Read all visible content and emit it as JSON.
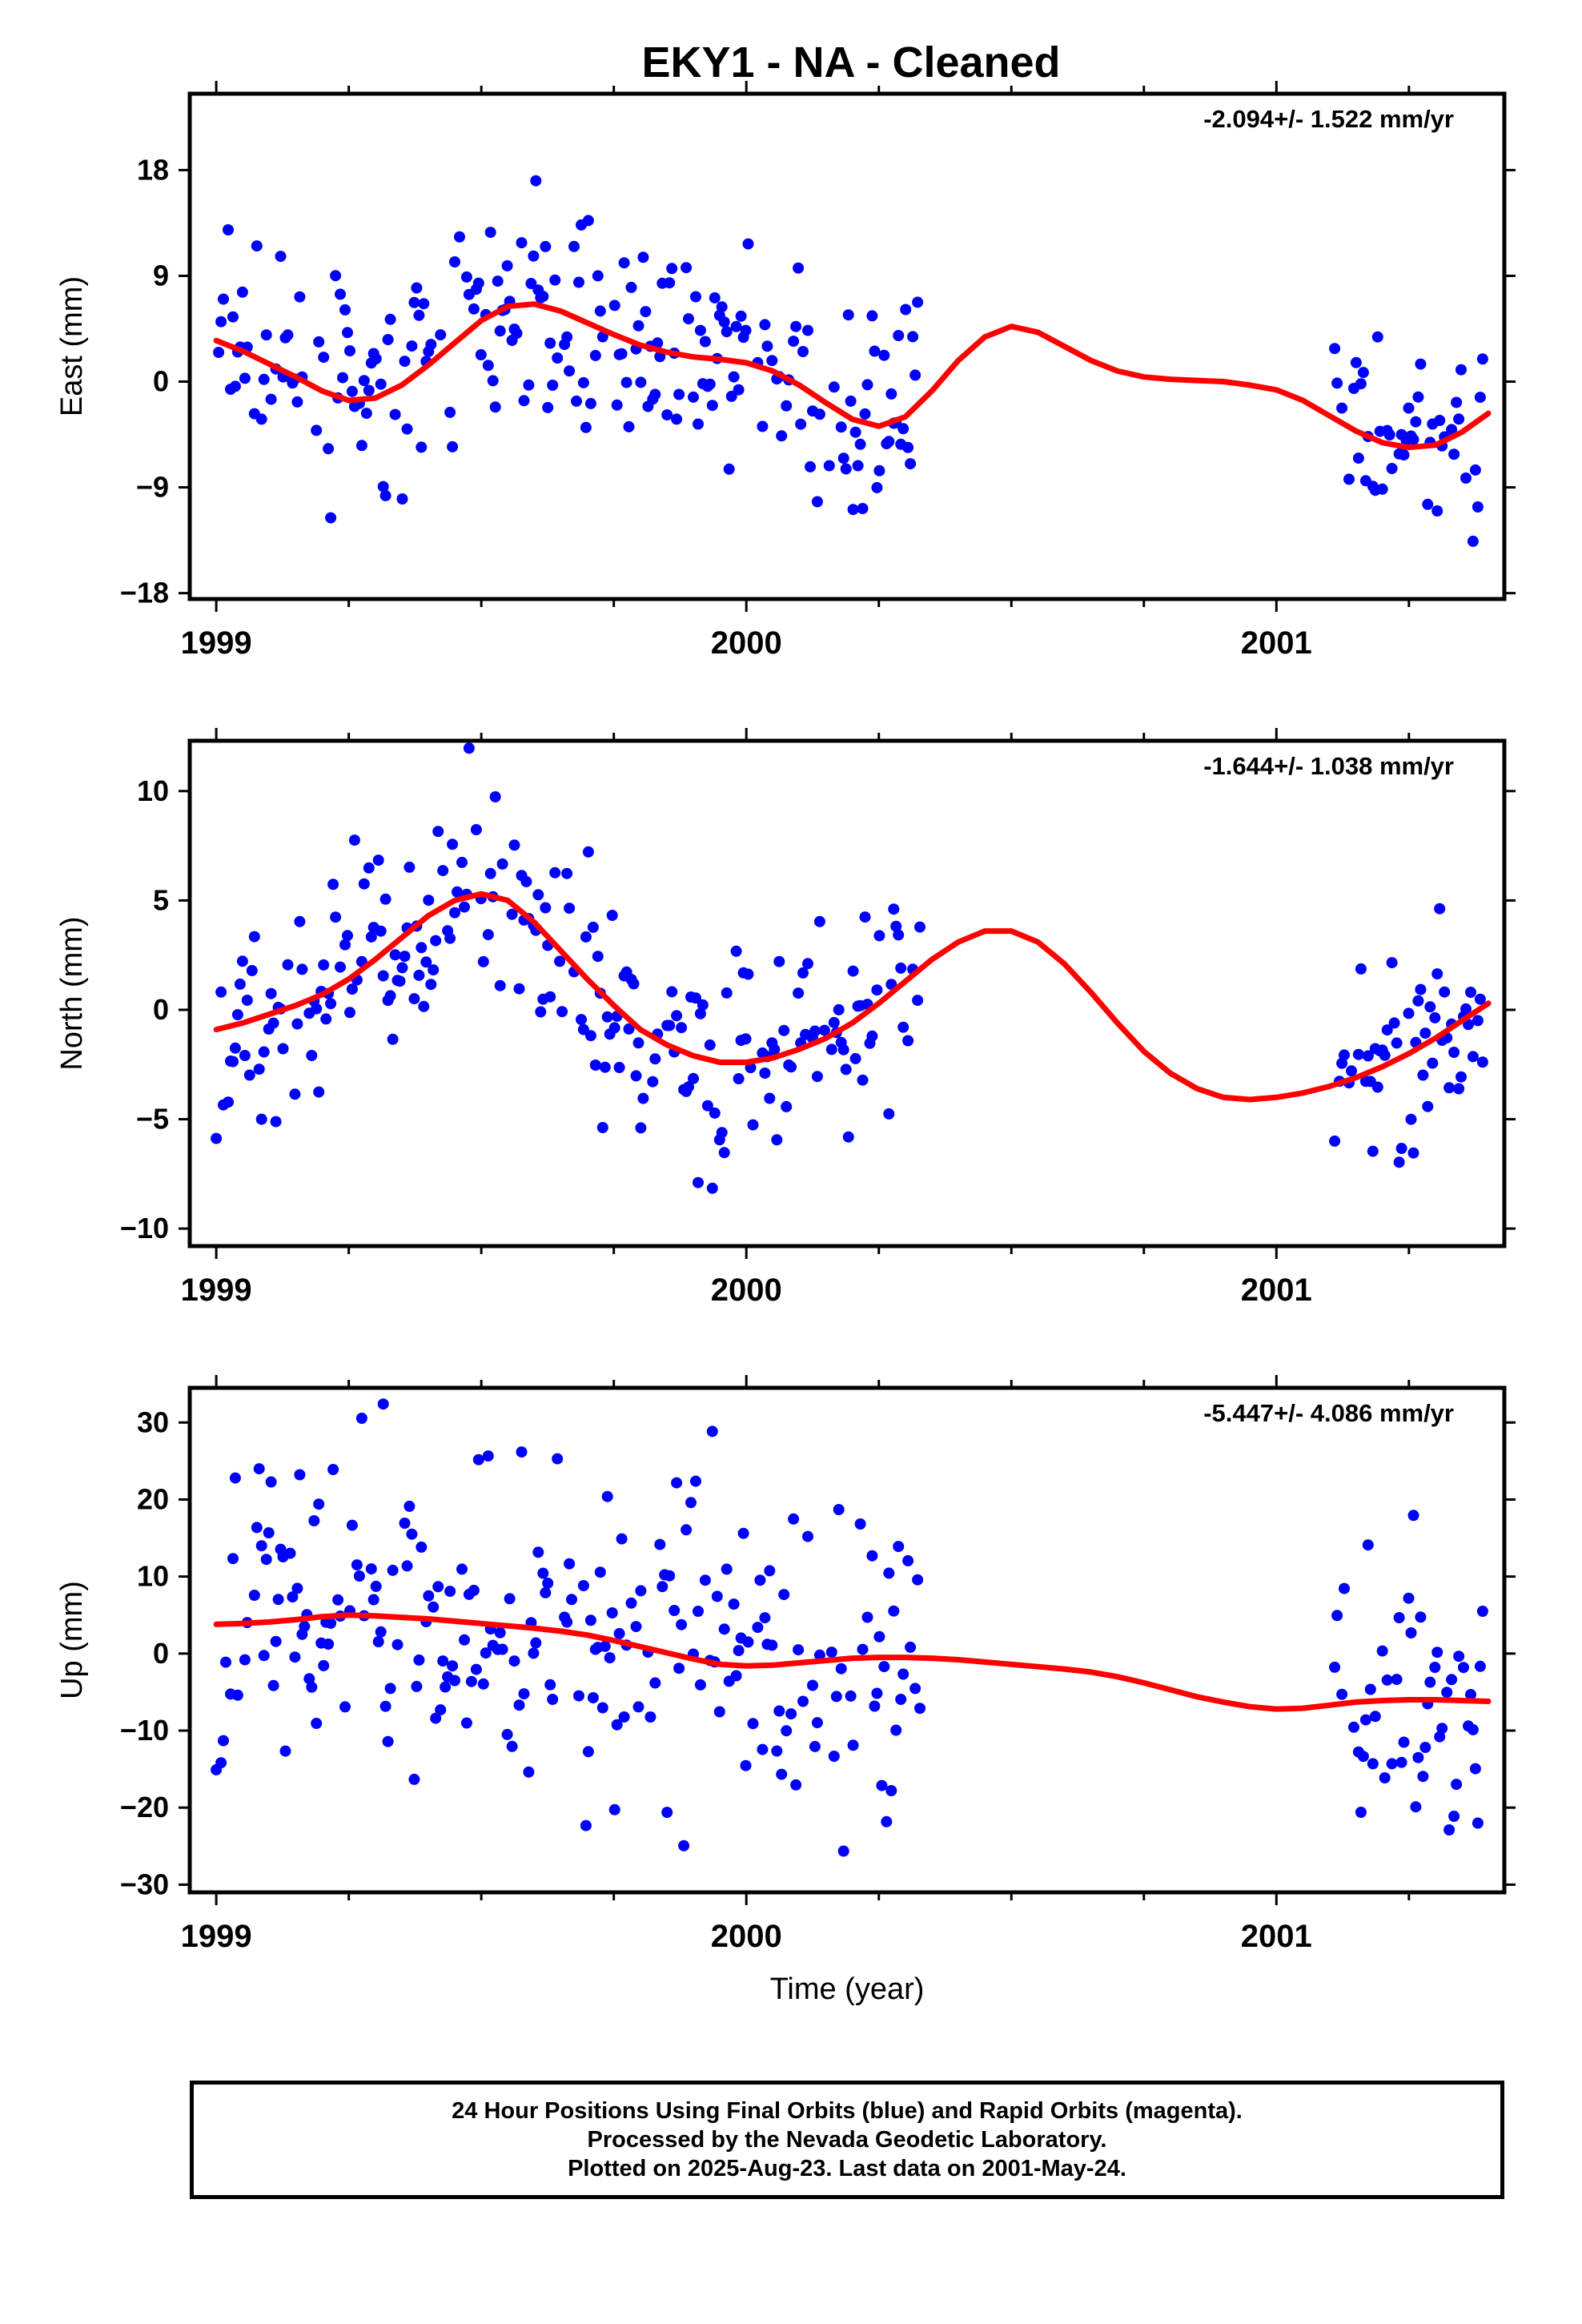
{
  "title": "EKY1  - NA - Cleaned",
  "chart_data": [
    {
      "type": "scatter",
      "ylabel": "East (mm)",
      "yticks": [
        18,
        9,
        0,
        -9,
        -18
      ],
      "ylim": [
        -18.5,
        24.5
      ],
      "xlim": [
        1998.95,
        2001.43
      ],
      "xticks": [
        1999,
        2000,
        2001
      ],
      "rate": "-2.094+/- 1.522 mm/yr",
      "series": [
        {
          "name": "Final Orbits",
          "color": "#0000ff",
          "style": "points"
        },
        {
          "name": "Model",
          "color": "#ff0000",
          "style": "line",
          "x": [
            1999.0,
            1999.05,
            1999.1,
            1999.15,
            1999.2,
            1999.25,
            1999.3,
            1999.35,
            1999.4,
            1999.45,
            1999.5,
            1999.55,
            1999.6,
            1999.65,
            1999.7,
            1999.75,
            1999.8,
            1999.85,
            1999.9,
            1999.95,
            2000.0,
            2000.05,
            2000.1,
            2000.15,
            2000.2,
            2000.25,
            2000.3,
            2000.35,
            2000.4,
            2000.45,
            2000.5,
            2000.55,
            2000.6,
            2000.65,
            2000.7,
            2000.75,
            2000.8,
            2000.85,
            2000.9,
            2000.95,
            2001.0,
            2001.05,
            2001.1,
            2001.15,
            2001.2,
            2001.25,
            2001.3,
            2001.35,
            2001.4
          ],
          "y": [
            3.5,
            2.6,
            1.5,
            0.4,
            -0.8,
            -1.6,
            -1.4,
            -0.3,
            1.4,
            3.3,
            5.2,
            6.4,
            6.6,
            6.0,
            5.0,
            4.0,
            3.1,
            2.5,
            2.1,
            1.9,
            1.6,
            0.9,
            -0.3,
            -1.8,
            -3.2,
            -3.8,
            -3.0,
            -0.8,
            1.8,
            3.8,
            4.7,
            4.2,
            3.0,
            1.8,
            0.9,
            0.4,
            0.2,
            0.1,
            0.0,
            -0.3,
            -0.7,
            -1.6,
            -2.9,
            -4.2,
            -5.2,
            -5.6,
            -5.4,
            -4.3,
            -2.7
          ]
        }
      ]
    },
    {
      "type": "scatter",
      "ylabel": "North (mm)",
      "yticks": [
        10,
        5,
        0,
        -5,
        -10
      ],
      "ylim": [
        -10.8,
        12.3
      ],
      "xlim": [
        1998.95,
        2001.43
      ],
      "xticks": [
        1999,
        2000,
        2001
      ],
      "rate": "-1.644+/- 1.038 mm/yr",
      "series": [
        {
          "name": "Final Orbits",
          "color": "#0000ff",
          "style": "points"
        },
        {
          "name": "Model",
          "color": "#ff0000",
          "style": "line",
          "x": [
            1999.0,
            1999.05,
            1999.1,
            1999.15,
            1999.2,
            1999.25,
            1999.3,
            1999.35,
            1999.4,
            1999.45,
            1999.5,
            1999.55,
            1999.6,
            1999.65,
            1999.7,
            1999.75,
            1999.8,
            1999.85,
            1999.9,
            1999.95,
            2000.0,
            2000.05,
            2000.1,
            2000.15,
            2000.2,
            2000.25,
            2000.3,
            2000.35,
            2000.4,
            2000.45,
            2000.5,
            2000.55,
            2000.6,
            2000.65,
            2000.7,
            2000.75,
            2000.8,
            2000.85,
            2000.9,
            2000.95,
            2001.0,
            2001.05,
            2001.1,
            2001.15,
            2001.2,
            2001.25,
            2001.3,
            2001.35,
            2001.4
          ],
          "y": [
            -0.9,
            -0.6,
            -0.2,
            0.2,
            0.7,
            1.4,
            2.3,
            3.3,
            4.3,
            5.0,
            5.3,
            5.0,
            4.0,
            2.7,
            1.4,
            0.2,
            -0.9,
            -1.6,
            -2.1,
            -2.4,
            -2.4,
            -2.2,
            -1.8,
            -1.3,
            -0.6,
            0.3,
            1.3,
            2.3,
            3.1,
            3.6,
            3.6,
            3.1,
            2.1,
            0.8,
            -0.6,
            -1.9,
            -2.9,
            -3.6,
            -4.0,
            -4.1,
            -4.0,
            -3.8,
            -3.5,
            -3.1,
            -2.6,
            -2.0,
            -1.3,
            -0.5,
            0.3
          ]
        }
      ]
    },
    {
      "type": "scatter",
      "ylabel": "Up (mm)",
      "yticks": [
        30,
        20,
        10,
        0,
        -10,
        -20,
        -30
      ],
      "ylim": [
        -31,
        34.5
      ],
      "xlim": [
        1998.95,
        2001.43
      ],
      "xticks": [
        1999,
        2000,
        2001
      ],
      "xlabel": "Time (year)",
      "rate": "-5.447+/- 4.086 mm/yr",
      "series": [
        {
          "name": "Final Orbits",
          "color": "#0000ff",
          "style": "points"
        },
        {
          "name": "Model",
          "color": "#ff0000",
          "style": "line",
          "x": [
            1999.0,
            1999.05,
            1999.1,
            1999.15,
            1999.2,
            1999.25,
            1999.3,
            1999.35,
            1999.4,
            1999.45,
            1999.5,
            1999.55,
            1999.6,
            1999.65,
            1999.7,
            1999.75,
            1999.8,
            1999.85,
            1999.9,
            1999.95,
            2000.0,
            2000.05,
            2000.1,
            2000.15,
            2000.2,
            2000.25,
            2000.3,
            2000.35,
            2000.4,
            2000.45,
            2000.5,
            2000.55,
            2000.6,
            2000.65,
            2000.7,
            2000.75,
            2000.8,
            2000.85,
            2000.9,
            2000.95,
            2001.0,
            2001.05,
            2001.1,
            2001.15,
            2001.2,
            2001.25,
            2001.3,
            2001.35,
            2001.4
          ],
          "y": [
            3.8,
            3.9,
            4.1,
            4.4,
            4.8,
            5.0,
            4.9,
            4.7,
            4.5,
            4.2,
            3.9,
            3.6,
            3.3,
            2.9,
            2.4,
            1.7,
            0.9,
            0.1,
            -0.7,
            -1.4,
            -1.6,
            -1.5,
            -1.2,
            -0.9,
            -0.6,
            -0.5,
            -0.5,
            -0.6,
            -0.8,
            -1.1,
            -1.4,
            -1.7,
            -2.0,
            -2.4,
            -3.0,
            -3.8,
            -4.7,
            -5.6,
            -6.3,
            -6.9,
            -7.2,
            -7.1,
            -6.7,
            -6.3,
            -6.1,
            -6.0,
            -6.0,
            -6.1,
            -6.2
          ]
        }
      ]
    }
  ],
  "footer": {
    "line1": "24 Hour Positions Using Final Orbits (blue) and Rapid Orbits (magenta).",
    "line2": "Processed by the Nevada Geodetic Laboratory.",
    "line3": "Plotted on 2025-Aug-23. Last data on 2001-May-24."
  }
}
